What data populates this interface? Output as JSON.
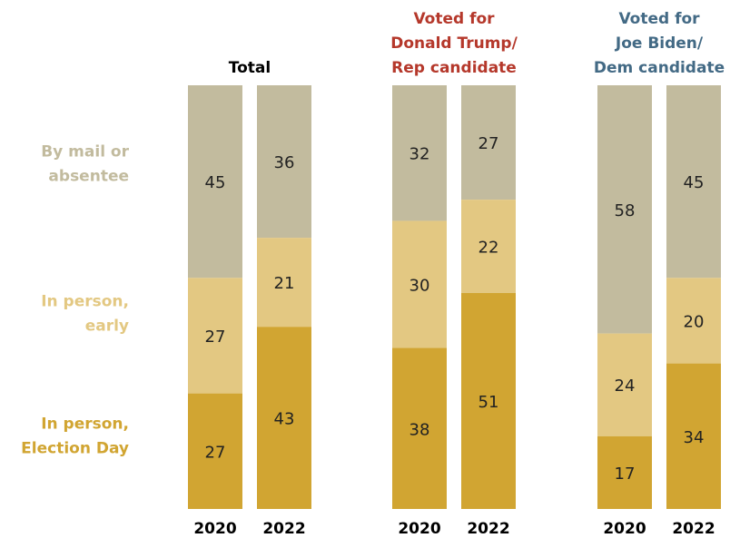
{
  "colors": {
    "mail": "#c2bb9e",
    "early": "#e3c882",
    "election_day": "#d1a532",
    "trump_title": "#b5382b",
    "biden_title": "#436a85",
    "total_title": "#000000",
    "text": "#222222"
  },
  "chart_data": {
    "type": "bar",
    "stacked": true,
    "categories": [
      "2020",
      "2022"
    ],
    "series_names": [
      "By mail or absentee",
      "In person, early",
      "In person, Election Day"
    ],
    "legend": [
      {
        "lines": [
          "By mail or",
          "absentee"
        ],
        "color_key": "mail"
      },
      {
        "lines": [
          "In person,",
          "early"
        ],
        "color_key": "early"
      },
      {
        "lines": [
          "In person,",
          "Election Day"
        ],
        "color_key": "election_day"
      }
    ],
    "groups": [
      {
        "title_lines": [
          "Total"
        ],
        "title_color_key": "total_title",
        "bars": [
          {
            "year": "2020",
            "mail": 45,
            "early": 27,
            "election_day": 27
          },
          {
            "year": "2022",
            "mail": 36,
            "early": 21,
            "election_day": 43
          }
        ]
      },
      {
        "title_lines": [
          "Voted for",
          "Donald Trump/",
          "Rep candidate"
        ],
        "title_color_key": "trump_title",
        "bars": [
          {
            "year": "2020",
            "mail": 32,
            "early": 30,
            "election_day": 38
          },
          {
            "year": "2022",
            "mail": 27,
            "early": 22,
            "election_day": 51
          }
        ]
      },
      {
        "title_lines": [
          "Voted for",
          "Joe Biden/",
          "Dem candidate"
        ],
        "title_color_key": "biden_title",
        "bars": [
          {
            "year": "2020",
            "mail": 58,
            "early": 24,
            "election_day": 17
          },
          {
            "year": "2022",
            "mail": 45,
            "early": 20,
            "election_day": 34
          }
        ]
      }
    ]
  }
}
